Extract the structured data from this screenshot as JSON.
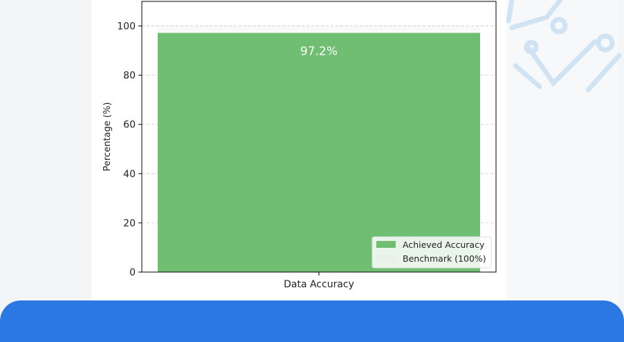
{
  "chart_data": {
    "type": "bar",
    "categories": [
      "Data Accuracy"
    ],
    "series": [
      {
        "name": "Achieved Accuracy",
        "values": [
          97.2
        ],
        "color": "#6fbe72"
      },
      {
        "name": "Benchmark (100%)",
        "values": [
          100
        ],
        "color": "#e8f0e8"
      }
    ],
    "data_labels": [
      "97.2%"
    ],
    "ylabel": "Percentage (%)",
    "xlabel": "",
    "ylim": [
      0,
      110
    ],
    "yticks": [
      0,
      20,
      40,
      60,
      80,
      100
    ],
    "grid": true,
    "legend": "bottom-right"
  },
  "colors": {
    "accent": "#2b78e4",
    "decoration": "#cfe3f2"
  }
}
